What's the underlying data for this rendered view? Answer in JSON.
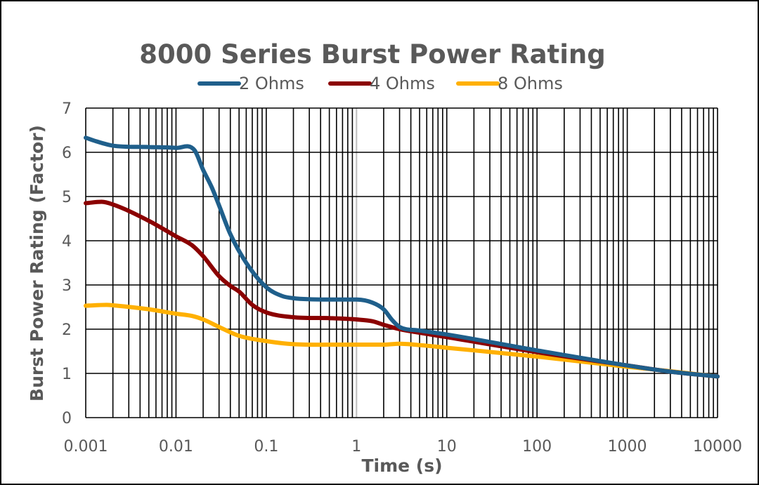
{
  "chart_data": {
    "type": "line",
    "title": "8000 Series Burst Power Rating",
    "xlabel": "Time (s)",
    "ylabel": "Burst Power Rating (Factor)",
    "x_scale": "log",
    "xlim": [
      0.001,
      10000
    ],
    "ylim": [
      0,
      7
    ],
    "x_ticks": [
      "0.001",
      "0.01",
      "0.1",
      "1",
      "10",
      "100",
      "1000",
      "10000"
    ],
    "y_ticks": [
      "0",
      "1",
      "2",
      "3",
      "4",
      "5",
      "6",
      "7"
    ],
    "grid": true,
    "legend_position": "top",
    "series": [
      {
        "name": "2 Ohms",
        "color": "#1f5f8b",
        "x": [
          0.001,
          0.0013,
          0.002,
          0.005,
          0.01,
          0.016,
          0.02,
          0.025,
          0.03,
          0.04,
          0.06,
          0.1,
          0.15,
          0.2,
          0.5,
          1,
          1.5,
          2,
          2.5,
          3,
          5,
          10,
          100,
          1000,
          3000,
          10000
        ],
        "y": [
          6.33,
          6.25,
          6.15,
          6.12,
          6.1,
          6.05,
          5.6,
          5.2,
          4.8,
          4.15,
          3.5,
          2.95,
          2.75,
          2.7,
          2.67,
          2.67,
          2.6,
          2.45,
          2.2,
          2.05,
          1.97,
          1.88,
          1.52,
          1.18,
          1.04,
          0.93
        ]
      },
      {
        "name": "4 Ohms",
        "color": "#8b0000",
        "x": [
          0.001,
          0.0015,
          0.002,
          0.005,
          0.01,
          0.015,
          0.02,
          0.03,
          0.04,
          0.05,
          0.07,
          0.1,
          0.2,
          0.5,
          1,
          1.5,
          2,
          3,
          5,
          10,
          100,
          1000,
          3000,
          10000
        ],
        "y": [
          4.85,
          4.88,
          4.82,
          4.45,
          4.1,
          3.9,
          3.65,
          3.2,
          2.98,
          2.85,
          2.55,
          2.38,
          2.27,
          2.25,
          2.22,
          2.18,
          2.1,
          2.0,
          1.92,
          1.82,
          1.48,
          1.18,
          1.04,
          0.93
        ]
      },
      {
        "name": "8 Ohms",
        "color": "#ffb000",
        "x": [
          0.001,
          0.0017,
          0.002,
          0.005,
          0.01,
          0.015,
          0.02,
          0.03,
          0.05,
          0.1,
          0.2,
          0.5,
          1,
          2,
          3,
          5,
          10,
          100,
          1000,
          3000,
          10000
        ],
        "y": [
          2.53,
          2.55,
          2.54,
          2.45,
          2.35,
          2.3,
          2.22,
          2.05,
          1.85,
          1.73,
          1.66,
          1.65,
          1.65,
          1.65,
          1.67,
          1.64,
          1.58,
          1.38,
          1.15,
          1.05,
          0.93
        ]
      }
    ]
  }
}
